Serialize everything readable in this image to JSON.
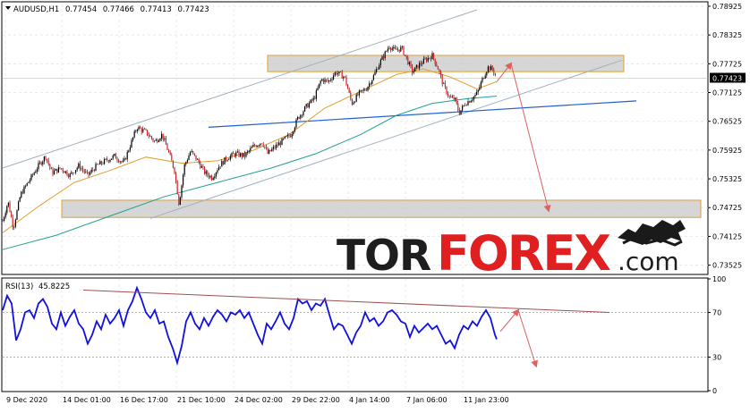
{
  "chart_data": [
    {
      "type": "candlestick",
      "header": {
        "symbol": "AUDUSD,H1",
        "open": "0.77454",
        "high": "0.77466",
        "low": "0.77413",
        "close": "0.77423"
      },
      "y_ticks": [
        "0.78925",
        "0.78325",
        "0.77725",
        "0.77125",
        "0.76525",
        "0.75925",
        "0.75325",
        "0.74725",
        "0.74125",
        "0.73525"
      ],
      "ylim": [
        0.7335,
        0.7898
      ],
      "current_price": "0.77423",
      "x_ticks": [
        "9 Dec 2020",
        "14 Dec 01:00",
        "16 Dec 17:00",
        "21 Dec 10:00",
        "24 Dec 02:00",
        "29 Dec 22:00",
        "4 Jan 14:00",
        "7 Jan 06:00",
        "11 Jan 23:00"
      ],
      "price_path": [
        [
          0,
          0.7445
        ],
        [
          6,
          0.7485
        ],
        [
          12,
          0.743
        ],
        [
          20,
          0.75
        ],
        [
          30,
          0.753
        ],
        [
          40,
          0.756
        ],
        [
          48,
          0.758
        ],
        [
          55,
          0.7545
        ],
        [
          65,
          0.7555
        ],
        [
          75,
          0.754
        ],
        [
          85,
          0.756
        ],
        [
          95,
          0.754
        ],
        [
          105,
          0.756
        ],
        [
          115,
          0.757
        ],
        [
          125,
          0.758
        ],
        [
          135,
          0.7565
        ],
        [
          142,
          0.76
        ],
        [
          150,
          0.764
        ],
        [
          160,
          0.763
        ],
        [
          170,
          0.761
        ],
        [
          178,
          0.7625
        ],
        [
          185,
          0.759
        ],
        [
          192,
          0.755
        ],
        [
          197,
          0.748
        ],
        [
          203,
          0.756
        ],
        [
          210,
          0.759
        ],
        [
          218,
          0.757
        ],
        [
          226,
          0.7545
        ],
        [
          234,
          0.7535
        ],
        [
          242,
          0.756
        ],
        [
          250,
          0.7575
        ],
        [
          260,
          0.7585
        ],
        [
          270,
          0.758
        ],
        [
          280,
          0.76
        ],
        [
          290,
          0.761
        ],
        [
          296,
          0.7585
        ],
        [
          305,
          0.76
        ],
        [
          315,
          0.7615
        ],
        [
          322,
          0.7625
        ],
        [
          330,
          0.766
        ],
        [
          340,
          0.7685
        ],
        [
          348,
          0.77
        ],
        [
          356,
          0.774
        ],
        [
          364,
          0.7735
        ],
        [
          372,
          0.7755
        ],
        [
          382,
          0.7745
        ],
        [
          390,
          0.769
        ],
        [
          398,
          0.771
        ],
        [
          406,
          0.772
        ],
        [
          414,
          0.7745
        ],
        [
          420,
          0.777
        ],
        [
          426,
          0.779
        ],
        [
          432,
          0.781
        ],
        [
          438,
          0.78
        ],
        [
          446,
          0.7805
        ],
        [
          452,
          0.778
        ],
        [
          458,
          0.7755
        ],
        [
          465,
          0.777
        ],
        [
          472,
          0.778
        ],
        [
          480,
          0.779
        ],
        [
          486,
          0.7765
        ],
        [
          493,
          0.7725
        ],
        [
          500,
          0.77
        ],
        [
          505,
          0.77
        ],
        [
          510,
          0.767
        ],
        [
          517,
          0.769
        ],
        [
          524,
          0.77
        ],
        [
          530,
          0.771
        ],
        [
          536,
          0.774
        ],
        [
          542,
          0.7765
        ],
        [
          548,
          0.776
        ],
        [
          552,
          0.7742
        ]
      ],
      "fast_ma": {
        "color": "#e0a030",
        "path": [
          [
            0,
            0.742
          ],
          [
            40,
            0.7475
          ],
          [
            80,
            0.7525
          ],
          [
            120,
            0.755
          ],
          [
            160,
            0.7578
          ],
          [
            200,
            0.7565
          ],
          [
            240,
            0.757
          ],
          [
            280,
            0.7592
          ],
          [
            320,
            0.7625
          ],
          [
            360,
            0.768
          ],
          [
            400,
            0.7715
          ],
          [
            440,
            0.775
          ],
          [
            470,
            0.7762
          ],
          [
            500,
            0.7745
          ],
          [
            530,
            0.772
          ],
          [
            552,
            0.7735
          ]
        ]
      },
      "slow_ma": {
        "color": "#20a090",
        "path": [
          [
            0,
            0.7385
          ],
          [
            60,
            0.7415
          ],
          [
            120,
            0.7455
          ],
          [
            180,
            0.7495
          ],
          [
            240,
            0.7525
          ],
          [
            300,
            0.7555
          ],
          [
            350,
            0.7585
          ],
          [
            400,
            0.7625
          ],
          [
            440,
            0.7665
          ],
          [
            480,
            0.769
          ],
          [
            520,
            0.77
          ],
          [
            552,
            0.7705
          ]
        ]
      },
      "channel_lines": {
        "color": "#a0b0c0",
        "lines": [
          [
            [
              0,
              0.7555
            ],
            [
              530,
              0.7885
            ]
          ],
          [
            [
              165,
              0.745
            ],
            [
              692,
              0.778
            ]
          ]
        ]
      },
      "trend_line": {
        "color": "#2060d0",
        "points": [
          [
            230,
            0.764
          ],
          [
            708,
            0.7695
          ]
        ]
      },
      "zones": {
        "fill": "#c8c8c8",
        "border": "#e0a030",
        "items": [
          {
            "x0": 296,
            "x1": 694,
            "y_top": 0.779,
            "y_bottom": 0.7756
          },
          {
            "x0": 66,
            "x1": 780,
            "y_top": 0.7488,
            "y_bottom": 0.7452
          }
        ]
      },
      "forecast_arrow": {
        "color": "#e06060",
        "points": [
          [
            552,
            0.7735
          ],
          [
            568,
            0.7773
          ],
          [
            610,
            0.7466
          ]
        ]
      }
    },
    {
      "type": "line",
      "header": {
        "label": "RSI(13)",
        "value": "45.8225"
      },
      "y_ticks": [
        "100",
        "70",
        "30",
        "0"
      ],
      "ylim": [
        0,
        100
      ],
      "levels": [
        70,
        30
      ],
      "color": "#1010e0",
      "rsi_path": [
        [
          0,
          72
        ],
        [
          5,
          85
        ],
        [
          10,
          78
        ],
        [
          15,
          45
        ],
        [
          20,
          55
        ],
        [
          25,
          70
        ],
        [
          30,
          72
        ],
        [
          35,
          65
        ],
        [
          40,
          78
        ],
        [
          45,
          82
        ],
        [
          50,
          75
        ],
        [
          55,
          60
        ],
        [
          60,
          55
        ],
        [
          65,
          70
        ],
        [
          70,
          58
        ],
        [
          75,
          66
        ],
        [
          80,
          72
        ],
        [
          85,
          60
        ],
        [
          90,
          55
        ],
        [
          95,
          42
        ],
        [
          100,
          50
        ],
        [
          105,
          62
        ],
        [
          110,
          55
        ],
        [
          115,
          68
        ],
        [
          120,
          60
        ],
        [
          125,
          65
        ],
        [
          130,
          72
        ],
        [
          135,
          58
        ],
        [
          140,
          72
        ],
        [
          145,
          80
        ],
        [
          150,
          92
        ],
        [
          155,
          82
        ],
        [
          160,
          70
        ],
        [
          165,
          65
        ],
        [
          170,
          72
        ],
        [
          175,
          60
        ],
        [
          180,
          62
        ],
        [
          185,
          48
        ],
        [
          190,
          38
        ],
        [
          195,
          25
        ],
        [
          200,
          40
        ],
        [
          205,
          62
        ],
        [
          210,
          70
        ],
        [
          215,
          60
        ],
        [
          220,
          55
        ],
        [
          225,
          65
        ],
        [
          230,
          58
        ],
        [
          235,
          66
        ],
        [
          240,
          72
        ],
        [
          245,
          68
        ],
        [
          250,
          62
        ],
        [
          255,
          70
        ],
        [
          260,
          68
        ],
        [
          265,
          72
        ],
        [
          270,
          65
        ],
        [
          275,
          70
        ],
        [
          280,
          60
        ],
        [
          285,
          50
        ],
        [
          290,
          42
        ],
        [
          295,
          60
        ],
        [
          300,
          55
        ],
        [
          305,
          62
        ],
        [
          310,
          70
        ],
        [
          315,
          60
        ],
        [
          320,
          55
        ],
        [
          325,
          65
        ],
        [
          330,
          82
        ],
        [
          335,
          78
        ],
        [
          340,
          80
        ],
        [
          345,
          72
        ],
        [
          350,
          78
        ],
        [
          355,
          76
        ],
        [
          360,
          82
        ],
        [
          365,
          68
        ],
        [
          370,
          55
        ],
        [
          375,
          60
        ],
        [
          380,
          58
        ],
        [
          385,
          50
        ],
        [
          390,
          42
        ],
        [
          395,
          52
        ],
        [
          400,
          58
        ],
        [
          405,
          70
        ],
        [
          410,
          62
        ],
        [
          415,
          65
        ],
        [
          420,
          58
        ],
        [
          425,
          62
        ],
        [
          430,
          70
        ],
        [
          435,
          72
        ],
        [
          440,
          68
        ],
        [
          445,
          62
        ],
        [
          450,
          60
        ],
        [
          455,
          48
        ],
        [
          460,
          58
        ],
        [
          465,
          52
        ],
        [
          470,
          56
        ],
        [
          475,
          60
        ],
        [
          480,
          55
        ],
        [
          485,
          58
        ],
        [
          490,
          50
        ],
        [
          495,
          42
        ],
        [
          500,
          45
        ],
        [
          505,
          38
        ],
        [
          510,
          50
        ],
        [
          515,
          58
        ],
        [
          520,
          55
        ],
        [
          525,
          62
        ],
        [
          530,
          58
        ],
        [
          535,
          66
        ],
        [
          540,
          72
        ],
        [
          545,
          65
        ],
        [
          550,
          50
        ],
        [
          552,
          46
        ]
      ],
      "trend_line": {
        "color": "#a05050",
        "points": [
          [
            90,
            90
          ],
          [
            678,
            70
          ]
        ]
      },
      "forecast_arrow": {
        "color": "#e06060",
        "points": [
          [
            556,
            53
          ],
          [
            576,
            72
          ],
          [
            596,
            22
          ]
        ]
      }
    }
  ],
  "watermark": {
    "text_dark": "TOR",
    "text_red": "FOREX",
    "text_suffix": ".com"
  }
}
